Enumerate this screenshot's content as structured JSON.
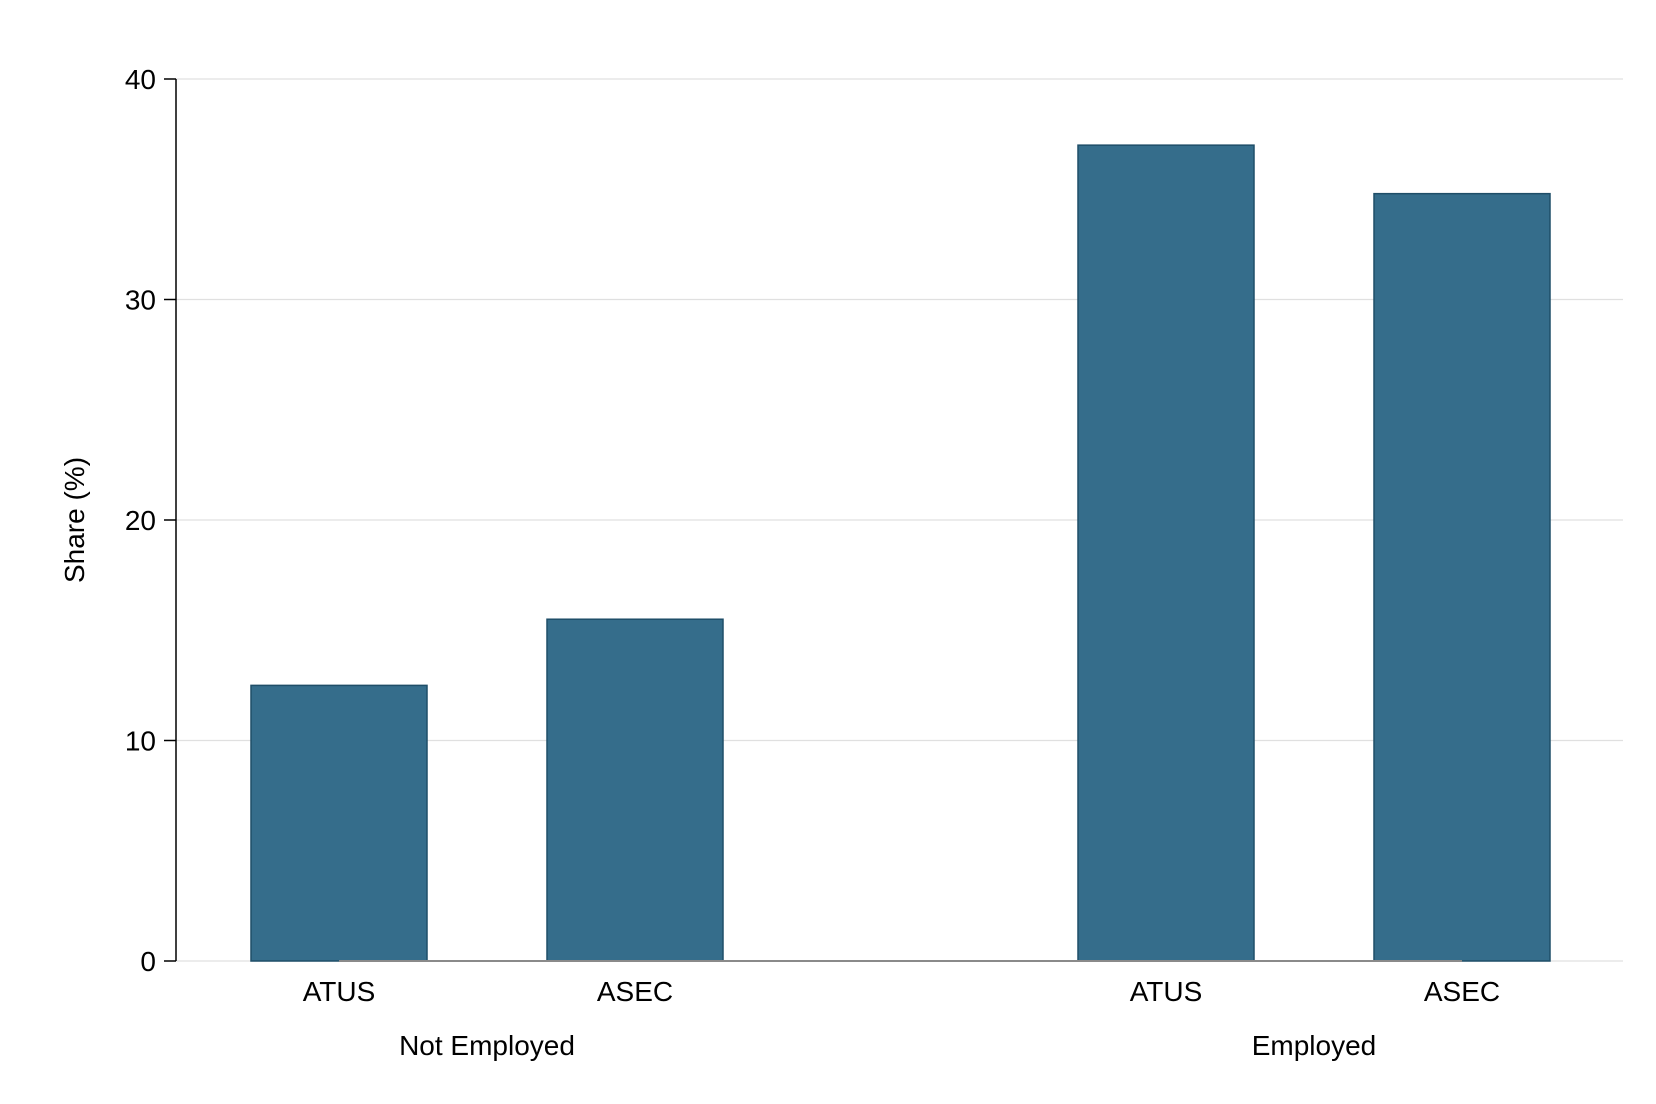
{
  "chart_data": {
    "type": "bar",
    "title": "",
    "xlabel": "",
    "ylabel": "Share (%)",
    "ylim": [
      0,
      40
    ],
    "yticks": [
      "0",
      "10",
      "20",
      "30",
      "40"
    ],
    "grid": "horizontal",
    "bar_color": "#356d8b",
    "bar_edge_color": "#1f4e68",
    "groups": [
      {
        "label": "Not Employed",
        "categories": [
          "ATUS",
          "ASEC"
        ],
        "values": [
          12.5,
          15.5
        ]
      },
      {
        "label": "Employed",
        "categories": [
          "ATUS",
          "ASEC"
        ],
        "values": [
          37.0,
          34.8
        ]
      }
    ]
  }
}
